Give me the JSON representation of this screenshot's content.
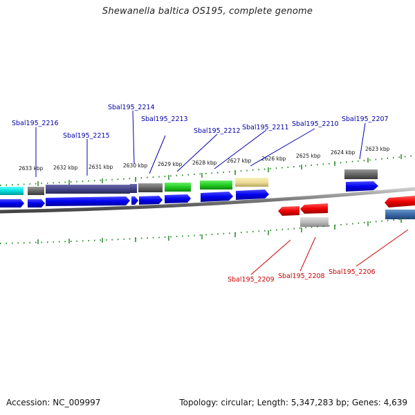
{
  "title": "Shewanella baltica OS195, complete genome",
  "footer": {
    "accession": "Accession: NC_009997",
    "summary": "Topology: circular; Length: 5,347,283 bp; Genes: 4,639"
  },
  "kbp_labels": [
    "2633 kbp",
    "2632 kbp",
    "2631 kbp",
    "2630 kbp",
    "2629 kbp",
    "2628 kbp",
    "2627 kbp",
    "2626 kbp",
    "2625 kbp",
    "2624 kbp",
    "2623 kbp"
  ],
  "gene_labels_top": [
    "Sbal195_2216",
    "Sbal195_2215",
    "Sbal195_2214",
    "Sbal195_2213",
    "Sbal195_2212",
    "Sbal195_2211",
    "Sbal195_2210",
    "Sbal195_2207"
  ],
  "gene_labels_bottom": [
    "Sbal195_2209",
    "Sbal195_2208",
    "Sbal195_2206"
  ],
  "colors": {
    "forward_cds": "#0000ee",
    "reverse_cds": "#ee0000",
    "top_label": "#0000aa",
    "bottom_label": "#cc0000",
    "tick": "#228822",
    "backbone": "#777777"
  }
}
